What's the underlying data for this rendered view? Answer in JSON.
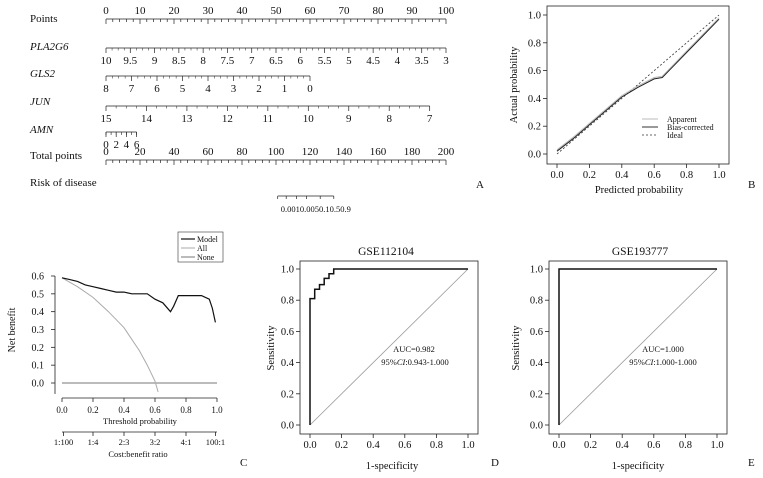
{
  "panel_labels": [
    "A",
    "B",
    "C",
    "D",
    "E"
  ],
  "chart_data": [
    {
      "type": "nomogram",
      "panel": "A",
      "rows": [
        {
          "label": "Points",
          "italic": false,
          "ticks": [
            "0",
            "10",
            "20",
            "30",
            "40",
            "50",
            "60",
            "70",
            "80",
            "90",
            "100"
          ],
          "values": [
            0,
            10,
            20,
            30,
            40,
            50,
            60,
            70,
            80,
            90,
            100
          ]
        },
        {
          "label": "PLA2G6",
          "italic": true,
          "ticks": [
            "10",
            "9.5",
            "9",
            "8.5",
            "8",
            "7.5",
            "7",
            "6.5",
            "6",
            "5.5",
            "5",
            "4.5",
            "4",
            "3.5",
            "3"
          ],
          "points": [
            0,
            7.14,
            14.29,
            21.43,
            28.57,
            35.71,
            42.86,
            50,
            57.14,
            64.29,
            71.43,
            78.57,
            85.71,
            92.86,
            100
          ]
        },
        {
          "label": "GLS2",
          "italic": true,
          "ticks": [
            "8",
            "7",
            "6",
            "5",
            "4",
            "3",
            "2",
            "1",
            "0"
          ],
          "points": [
            0,
            7.5,
            15,
            22.5,
            30,
            37.5,
            45,
            52.5,
            60
          ]
        },
        {
          "label": "JUN",
          "italic": true,
          "ticks": [
            "15",
            "14",
            "13",
            "12",
            "11",
            "10",
            "9",
            "8",
            "7"
          ],
          "points": [
            0,
            11.9,
            23.8,
            35.7,
            47.6,
            59.5,
            71.4,
            83.3,
            95.2
          ]
        },
        {
          "label": "AMN",
          "italic": true,
          "ticks": [
            "0",
            "2",
            "4",
            "6"
          ],
          "points": [
            0,
            3,
            6,
            9
          ]
        },
        {
          "label": "Total points",
          "italic": false,
          "ticks": [
            "0",
            "20",
            "40",
            "60",
            "80",
            "100",
            "120",
            "140",
            "160",
            "180",
            "200"
          ],
          "values": [
            0,
            20,
            40,
            60,
            80,
            100,
            120,
            140,
            160,
            180,
            200
          ]
        },
        {
          "label": "Risk of disease",
          "italic": false,
          "ticks": [
            "0.001",
            "0.01",
            "0.05",
            "0.1",
            "0.5",
            "0.9"
          ],
          "tick_text": "0.0010.0050.10.50.9",
          "total_points": [
            101,
            106,
            112,
            118,
            126,
            134
          ]
        }
      ]
    },
    {
      "type": "line",
      "panel": "B",
      "title": "",
      "xlabel": "Predicted probability",
      "ylabel": "Actual probability",
      "xlim": [
        0,
        1
      ],
      "ylim": [
        0,
        1
      ],
      "xticks": [
        "0.0",
        "0.2",
        "0.4",
        "0.6",
        "0.8",
        "1.0"
      ],
      "yticks": [
        "0.0",
        "0.2",
        "0.4",
        "0.6",
        "0.8",
        "1.0"
      ],
      "legend": [
        "Apparent",
        "Bias-corrected",
        "Ideal"
      ],
      "legend_position": "bottom-right",
      "series": [
        {
          "name": "Apparent",
          "x": [
            0.0,
            0.1,
            0.2,
            0.3,
            0.4,
            0.5,
            0.6,
            0.65,
            0.7,
            0.8,
            0.9,
            1.0
          ],
          "y": [
            0.03,
            0.12,
            0.22,
            0.32,
            0.42,
            0.49,
            0.55,
            0.56,
            0.62,
            0.74,
            0.86,
            0.98
          ]
        },
        {
          "name": "Bias-corrected",
          "x": [
            0.0,
            0.1,
            0.2,
            0.3,
            0.4,
            0.5,
            0.6,
            0.65,
            0.7,
            0.8,
            0.9,
            1.0
          ],
          "y": [
            0.02,
            0.11,
            0.21,
            0.31,
            0.41,
            0.48,
            0.54,
            0.55,
            0.61,
            0.73,
            0.85,
            0.97
          ]
        },
        {
          "name": "Ideal",
          "x": [
            0,
            1
          ],
          "y": [
            0,
            1
          ]
        }
      ]
    },
    {
      "type": "line",
      "panel": "C",
      "title": "",
      "xlabel": "Threshold probability",
      "ylabel": "Net benefit",
      "xlim": [
        0,
        1
      ],
      "ylim": [
        -0.05,
        0.62
      ],
      "xticks": [
        "0.0",
        "0.2",
        "0.4",
        "0.6",
        "0.8",
        "1.0"
      ],
      "yticks": [
        "0.0",
        "0.1",
        "0.2",
        "0.3",
        "0.4",
        "0.5",
        "0.6"
      ],
      "secondary_axis_label": "Cost:benefit ratio",
      "secondary_ticks": [
        "1:100",
        "1:4",
        "2:3",
        "3:2",
        "4:1",
        "100:1"
      ],
      "legend": [
        "Model",
        "All",
        "None"
      ],
      "legend_position": "top-right",
      "series": [
        {
          "name": "Model",
          "x": [
            0.0,
            0.05,
            0.1,
            0.15,
            0.2,
            0.25,
            0.3,
            0.35,
            0.4,
            0.45,
            0.5,
            0.55,
            0.6,
            0.65,
            0.7,
            0.72,
            0.75,
            0.8,
            0.85,
            0.9,
            0.95,
            0.97,
            0.99
          ],
          "y": [
            0.59,
            0.58,
            0.57,
            0.55,
            0.54,
            0.53,
            0.52,
            0.51,
            0.51,
            0.5,
            0.5,
            0.5,
            0.47,
            0.45,
            0.4,
            0.43,
            0.49,
            0.49,
            0.49,
            0.49,
            0.47,
            0.42,
            0.34
          ]
        },
        {
          "name": "All",
          "x": [
            0.0,
            0.1,
            0.2,
            0.3,
            0.4,
            0.5,
            0.55,
            0.6,
            0.62
          ],
          "y": [
            0.59,
            0.54,
            0.48,
            0.4,
            0.31,
            0.18,
            0.1,
            0.01,
            -0.05
          ]
        },
        {
          "name": "None",
          "x": [
            0,
            1
          ],
          "y": [
            0,
            0
          ]
        }
      ]
    },
    {
      "type": "line",
      "panel": "D",
      "title": "GSE112104",
      "xlabel": "1-specificity",
      "ylabel": "Sensitivity",
      "xlim": [
        0,
        1
      ],
      "ylim": [
        0,
        1
      ],
      "xticks": [
        "0.0",
        "0.2",
        "0.4",
        "0.6",
        "0.8",
        "1.0"
      ],
      "yticks": [
        "0.0",
        "0.2",
        "0.4",
        "0.6",
        "0.8",
        "1.0"
      ],
      "annotation": {
        "auc": "AUC=0.982",
        "ci_prefix": "95%",
        "ci_italic": "CI",
        "ci_value": ":0.943-1.000"
      },
      "series": [
        {
          "name": "ROC",
          "x": [
            0,
            0,
            0.03,
            0.03,
            0.06,
            0.06,
            0.09,
            0.09,
            0.12,
            0.12,
            0.15,
            0.15,
            1.0
          ],
          "y": [
            0,
            0.81,
            0.81,
            0.87,
            0.87,
            0.9,
            0.9,
            0.94,
            0.94,
            0.97,
            0.97,
            1.0,
            1.0
          ]
        },
        {
          "name": "Reference",
          "x": [
            0,
            1
          ],
          "y": [
            0,
            1
          ]
        }
      ]
    },
    {
      "type": "line",
      "panel": "E",
      "title": "GSE193777",
      "xlabel": "1-specificity",
      "ylabel": "Sensitivity",
      "xlim": [
        0,
        1
      ],
      "ylim": [
        0,
        1
      ],
      "xticks": [
        "0.0",
        "0.2",
        "0.4",
        "0.6",
        "0.8",
        "1.0"
      ],
      "yticks": [
        "0.0",
        "0.2",
        "0.4",
        "0.6",
        "0.8",
        "1.0"
      ],
      "annotation": {
        "auc": "AUC=1.000",
        "ci_prefix": "95%",
        "ci_italic": "CI",
        "ci_value": ":1.000-1.000"
      },
      "series": [
        {
          "name": "ROC",
          "x": [
            0,
            0,
            1.0
          ],
          "y": [
            0,
            1.0,
            1.0
          ]
        },
        {
          "name": "Reference",
          "x": [
            0,
            1
          ],
          "y": [
            0,
            1
          ]
        }
      ]
    }
  ]
}
